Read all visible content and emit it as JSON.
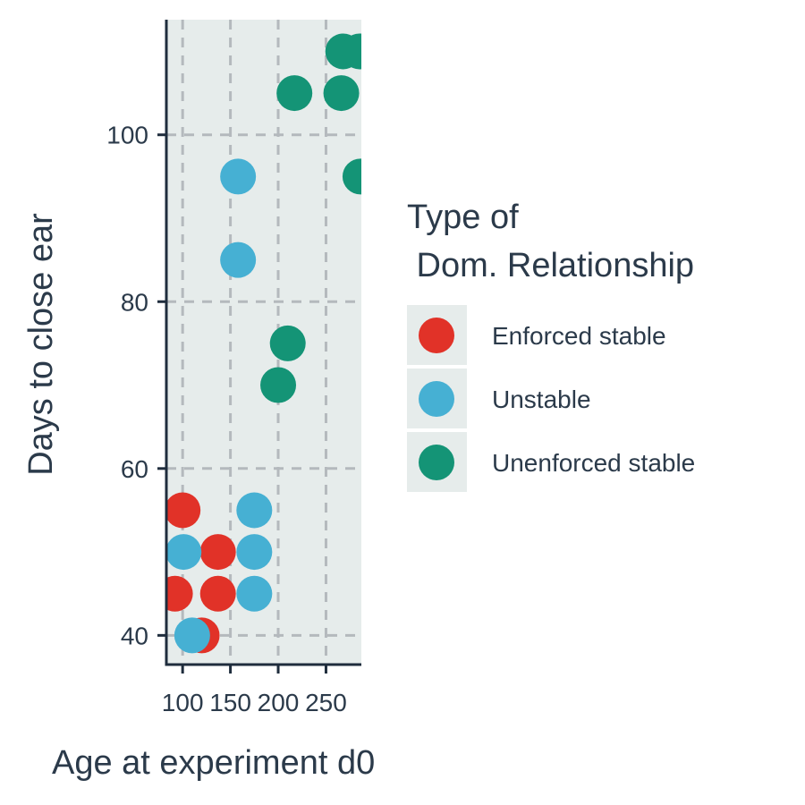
{
  "chart_data": {
    "type": "scatter",
    "xlabel": "Age at experiment d0",
    "ylabel": "Days to close ear",
    "xlim": [
      83,
      287
    ],
    "ylim": [
      36.5,
      113.8
    ],
    "xticks": [
      100,
      150,
      200,
      250
    ],
    "xtick_labels": [
      "100",
      "150",
      "200",
      "250"
    ],
    "yticks": [
      40,
      60,
      80,
      100
    ],
    "ytick_labels": [
      "40",
      "60",
      "80",
      "100"
    ],
    "grid": true,
    "grid_style": "dashed",
    "panel_background": "#e6eceb",
    "legend": {
      "title_lines": [
        "Type of",
        " Dom. Relationship"
      ],
      "placement": "right"
    },
    "series": [
      {
        "name": "Enforced stable",
        "color": "#e13228",
        "points": [
          {
            "x": 100,
            "y": 55
          },
          {
            "x": 92,
            "y": 45
          },
          {
            "x": 137,
            "y": 50
          },
          {
            "x": 137,
            "y": 45
          },
          {
            "x": 120,
            "y": 40
          }
        ]
      },
      {
        "name": "Unstable",
        "color": "#46b0d3",
        "points": [
          {
            "x": 101,
            "y": 50
          },
          {
            "x": 110,
            "y": 40
          },
          {
            "x": 158,
            "y": 95
          },
          {
            "x": 158,
            "y": 85
          },
          {
            "x": 175,
            "y": 55
          },
          {
            "x": 175,
            "y": 50
          },
          {
            "x": 175,
            "y": 45
          }
        ]
      },
      {
        "name": "Unenforced stable",
        "color": "#149476",
        "points": [
          {
            "x": 268,
            "y": 110
          },
          {
            "x": 285,
            "y": 110
          },
          {
            "x": 217,
            "y": 105
          },
          {
            "x": 266,
            "y": 105
          },
          {
            "x": 286,
            "y": 95
          },
          {
            "x": 210,
            "y": 75
          },
          {
            "x": 200,
            "y": 70
          }
        ]
      }
    ]
  }
}
